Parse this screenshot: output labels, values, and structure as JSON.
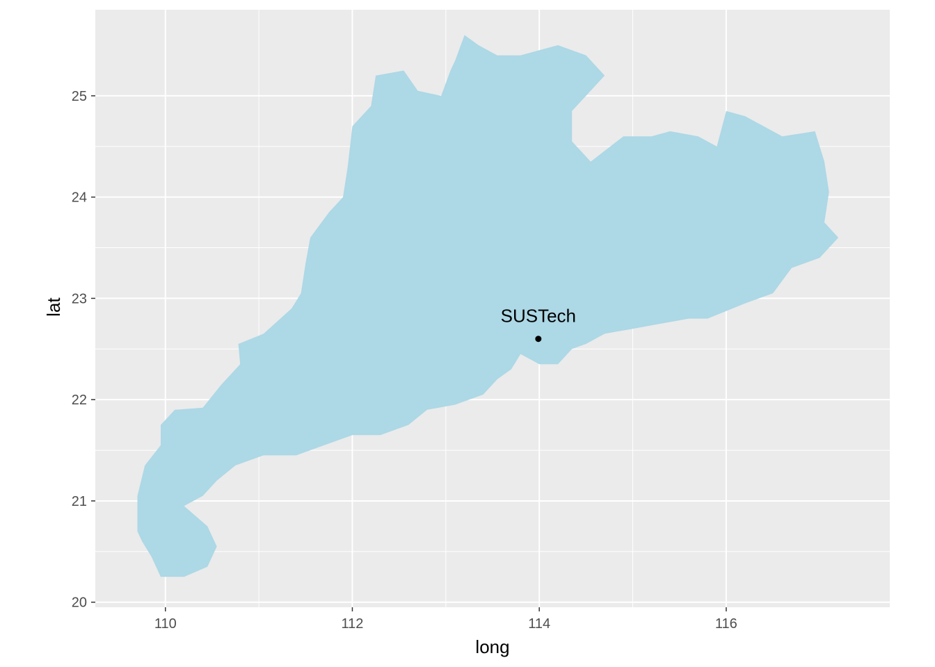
{
  "chart_data": {
    "type": "map",
    "xlabel": "long",
    "ylabel": "lat",
    "xlim": [
      109.25,
      117.75
    ],
    "ylim": [
      19.95,
      25.85
    ],
    "x_ticks": [
      110,
      112,
      114,
      116
    ],
    "y_ticks": [
      20,
      21,
      22,
      23,
      24,
      25
    ],
    "panel_color": "#ebebeb",
    "grid_color": "#ffffff",
    "region_fill": "#add8e6",
    "region_outline": [
      [
        109.7,
        20.7
      ],
      [
        109.7,
        21.05
      ],
      [
        109.78,
        21.35
      ],
      [
        109.95,
        21.55
      ],
      [
        109.95,
        21.75
      ],
      [
        110.1,
        21.9
      ],
      [
        110.4,
        21.92
      ],
      [
        110.6,
        22.15
      ],
      [
        110.8,
        22.35
      ],
      [
        110.78,
        22.55
      ],
      [
        111.05,
        22.65
      ],
      [
        111.35,
        22.9
      ],
      [
        111.45,
        23.05
      ],
      [
        111.5,
        23.35
      ],
      [
        111.55,
        23.6
      ],
      [
        111.75,
        23.85
      ],
      [
        111.9,
        24.0
      ],
      [
        111.95,
        24.3
      ],
      [
        112.0,
        24.7
      ],
      [
        112.2,
        24.9
      ],
      [
        112.25,
        25.2
      ],
      [
        112.55,
        25.25
      ],
      [
        112.7,
        25.05
      ],
      [
        112.95,
        25.0
      ],
      [
        113.05,
        25.25
      ],
      [
        113.1,
        25.35
      ],
      [
        113.2,
        25.6
      ],
      [
        113.35,
        25.5
      ],
      [
        113.55,
        25.4
      ],
      [
        113.8,
        25.4
      ],
      [
        114.0,
        25.45
      ],
      [
        114.2,
        25.5
      ],
      [
        114.5,
        25.4
      ],
      [
        114.7,
        25.2
      ],
      [
        114.5,
        25.0
      ],
      [
        114.35,
        24.85
      ],
      [
        114.35,
        24.55
      ],
      [
        114.55,
        24.35
      ],
      [
        114.9,
        24.6
      ],
      [
        115.2,
        24.6
      ],
      [
        115.4,
        24.65
      ],
      [
        115.7,
        24.6
      ],
      [
        115.9,
        24.5
      ],
      [
        116.0,
        24.85
      ],
      [
        116.2,
        24.8
      ],
      [
        116.4,
        24.7
      ],
      [
        116.6,
        24.6
      ],
      [
        116.95,
        24.65
      ],
      [
        117.05,
        24.35
      ],
      [
        117.1,
        24.05
      ],
      [
        117.05,
        23.75
      ],
      [
        117.2,
        23.6
      ],
      [
        117.0,
        23.4
      ],
      [
        116.7,
        23.3
      ],
      [
        116.5,
        23.05
      ],
      [
        116.2,
        22.95
      ],
      [
        115.8,
        22.8
      ],
      [
        115.6,
        22.8
      ],
      [
        115.3,
        22.75
      ],
      [
        115.0,
        22.7
      ],
      [
        114.7,
        22.65
      ],
      [
        114.5,
        22.55
      ],
      [
        114.35,
        22.5
      ],
      [
        114.2,
        22.35
      ],
      [
        114.0,
        22.35
      ],
      [
        113.8,
        22.45
      ],
      [
        113.7,
        22.3
      ],
      [
        113.55,
        22.2
      ],
      [
        113.4,
        22.05
      ],
      [
        113.1,
        21.95
      ],
      [
        112.8,
        21.9
      ],
      [
        112.6,
        21.75
      ],
      [
        112.3,
        21.65
      ],
      [
        112.0,
        21.65
      ],
      [
        111.7,
        21.55
      ],
      [
        111.4,
        21.45
      ],
      [
        111.05,
        21.45
      ],
      [
        110.75,
        21.35
      ],
      [
        110.55,
        21.2
      ],
      [
        110.4,
        21.05
      ],
      [
        110.2,
        20.95
      ],
      [
        110.45,
        20.75
      ],
      [
        110.55,
        20.55
      ],
      [
        110.45,
        20.35
      ],
      [
        110.2,
        20.25
      ],
      [
        109.95,
        20.25
      ],
      [
        109.85,
        20.45
      ],
      [
        109.75,
        20.6
      ]
    ],
    "points": [
      {
        "label": "SUSTech",
        "long": 113.99,
        "lat": 22.6
      }
    ]
  }
}
